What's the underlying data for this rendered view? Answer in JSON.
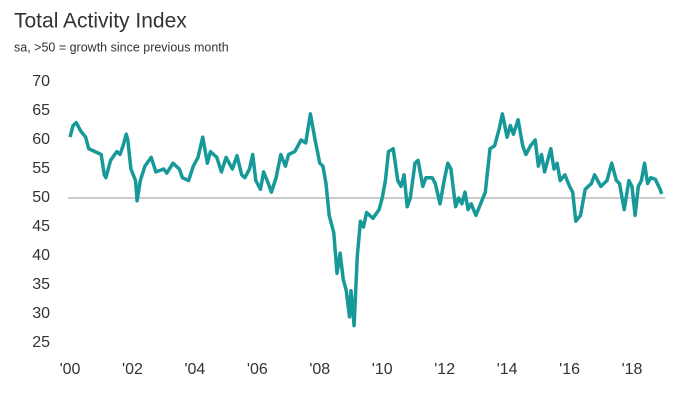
{
  "chart_data": {
    "type": "line",
    "title": "Total Activity Index",
    "subtitle": "sa, >50 = growth since previous month",
    "x": [
      2000.0,
      2000.1,
      2000.2,
      2000.35,
      2000.5,
      2000.6,
      2000.8,
      2001.0,
      2001.1,
      2001.15,
      2001.3,
      2001.5,
      2001.6,
      2001.7,
      2001.8,
      2001.85,
      2001.95,
      2002.1,
      2002.15,
      2002.25,
      2002.4,
      2002.6,
      2002.75,
      2003.0,
      2003.1,
      2003.3,
      2003.5,
      2003.6,
      2003.8,
      2003.95,
      2004.1,
      2004.25,
      2004.4,
      2004.5,
      2004.7,
      2004.85,
      2005.0,
      2005.2,
      2005.35,
      2005.5,
      2005.6,
      2005.75,
      2005.85,
      2005.95,
      2006.1,
      2006.2,
      2006.35,
      2006.45,
      2006.6,
      2006.75,
      2006.9,
      2007.0,
      2007.2,
      2007.4,
      2007.55,
      2007.7,
      2007.85,
      2008.0,
      2008.1,
      2008.2,
      2008.3,
      2008.45,
      2008.55,
      2008.65,
      2008.75,
      2008.85,
      2008.95,
      2009.0,
      2009.1,
      2009.2,
      2009.3,
      2009.4,
      2009.5,
      2009.7,
      2009.9,
      2010.0,
      2010.1,
      2010.2,
      2010.35,
      2010.5,
      2010.6,
      2010.7,
      2010.8,
      2010.9,
      2011.05,
      2011.15,
      2011.3,
      2011.4,
      2011.6,
      2011.7,
      2011.85,
      2012.0,
      2012.1,
      2012.2,
      2012.35,
      2012.45,
      2012.55,
      2012.65,
      2012.75,
      2012.85,
      2013.0,
      2013.15,
      2013.3,
      2013.45,
      2013.6,
      2013.75,
      2013.85,
      2014.0,
      2014.1,
      2014.2,
      2014.35,
      2014.5,
      2014.6,
      2014.75,
      2014.9,
      2015.0,
      2015.1,
      2015.2,
      2015.4,
      2015.5,
      2015.6,
      2015.7,
      2015.85,
      2016.0,
      2016.1,
      2016.2,
      2016.35,
      2016.5,
      2016.7,
      2016.8,
      2017.0,
      2017.2,
      2017.35,
      2017.5,
      2017.6,
      2017.75,
      2017.9,
      2018.0,
      2018.1,
      2018.2,
      2018.3,
      2018.4,
      2018.5,
      2018.6,
      2018.75,
      2018.9,
      2018.95
    ],
    "series": [
      {
        "name": "Total Activity Index",
        "color": "#17999a",
        "values": [
          60.5,
          62.5,
          63,
          61.5,
          60.5,
          58.5,
          58,
          57.5,
          54,
          53.5,
          56.5,
          58,
          57.5,
          59,
          61,
          60,
          55,
          53,
          49.5,
          53,
          55.5,
          57,
          54.5,
          55,
          54.3,
          56,
          55,
          53.5,
          53,
          55.5,
          57,
          60.5,
          56,
          58,
          57,
          54.5,
          57,
          55,
          57.3,
          54,
          53.5,
          55,
          57.5,
          53,
          51.5,
          54.5,
          52.5,
          51,
          53.5,
          57.5,
          55.5,
          57.5,
          58,
          60,
          59.5,
          64.5,
          60,
          56,
          55.5,
          52.5,
          47,
          44,
          37,
          40.5,
          36,
          34,
          29.5,
          34,
          28,
          40,
          46,
          45,
          47.5,
          46.5,
          48,
          50,
          53,
          58,
          58.5,
          53,
          52,
          54,
          48.5,
          50,
          56,
          56.5,
          52,
          53.5,
          53.5,
          52.5,
          49,
          53.5,
          56,
          55,
          48.5,
          50,
          49,
          51,
          48,
          49,
          47,
          49,
          51,
          58.5,
          59,
          62,
          64.5,
          60.5,
          62.5,
          61,
          63.5,
          59,
          57.5,
          59,
          60,
          55.5,
          57.5,
          54.5,
          58.5,
          55,
          56,
          53,
          54,
          52,
          51,
          46,
          47,
          51.5,
          52.5,
          54,
          52,
          53,
          56,
          53,
          52.5,
          48,
          53,
          52,
          47,
          52,
          53,
          56,
          52.5,
          53.5,
          53.2,
          51.5,
          50.7
        ]
      }
    ],
    "hline": 50,
    "xlim": [
      2000,
      2019
    ],
    "xticks": [
      {
        "value": 2000,
        "label": "'00"
      },
      {
        "value": 2002,
        "label": "'02"
      },
      {
        "value": 2004,
        "label": "'04"
      },
      {
        "value": 2006,
        "label": "'06"
      },
      {
        "value": 2008,
        "label": "'08"
      },
      {
        "value": 2010,
        "label": "'10"
      },
      {
        "value": 2012,
        "label": "'12"
      },
      {
        "value": 2014,
        "label": "'14"
      },
      {
        "value": 2016,
        "label": "'16"
      },
      {
        "value": 2018,
        "label": "'18"
      }
    ],
    "ylim": [
      25,
      70
    ],
    "yticks": [
      25,
      30,
      35,
      40,
      45,
      50,
      55,
      60,
      65,
      70
    ]
  }
}
